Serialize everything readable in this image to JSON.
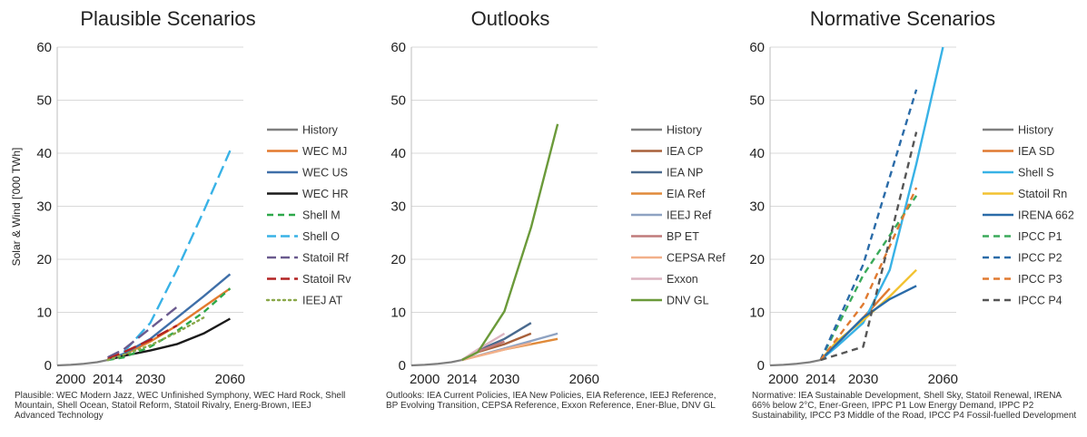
{
  "y_axis_label": "Solar & Wind ['000 TWh]",
  "chart_data": [
    {
      "type": "line",
      "title": "Plausible Scenarios",
      "ylabel": "Solar & Wind ['000 TWh]",
      "xticks": [
        2000,
        2014,
        2030,
        2060
      ],
      "yticks": [
        0,
        10,
        20,
        30,
        40,
        50,
        60
      ],
      "ylim": [
        0,
        60
      ],
      "xlim": [
        1995,
        2065
      ],
      "grid": true,
      "legend": "right",
      "series": [
        {
          "name": "History",
          "color": "#7f7f7f",
          "dash": "solid",
          "x": [
            1995,
            2000,
            2005,
            2010,
            2014
          ],
          "y": [
            0,
            0.1,
            0.3,
            0.6,
            1.0
          ]
        },
        {
          "name": "WEC MJ",
          "color": "#e37a2e",
          "dash": "solid",
          "x": [
            2014,
            2020,
            2030,
            2040,
            2050,
            2060
          ],
          "y": [
            1.0,
            2.0,
            4.5,
            7.5,
            11.0,
            14.5
          ]
        },
        {
          "name": "WEC US",
          "color": "#3f6fa8",
          "dash": "solid",
          "x": [
            2014,
            2020,
            2030,
            2040,
            2050,
            2060
          ],
          "y": [
            1.0,
            2.2,
            5.0,
            9.0,
            13.0,
            17.2
          ]
        },
        {
          "name": "WEC HR",
          "color": "#1a1a1a",
          "dash": "solid",
          "x": [
            2014,
            2020,
            2030,
            2040,
            2050,
            2060
          ],
          "y": [
            1.0,
            1.8,
            2.8,
            4.0,
            6.0,
            8.8
          ]
        },
        {
          "name": "Shell M",
          "color": "#2ea84a",
          "dash": "dash",
          "x": [
            2014,
            2020,
            2030,
            2040,
            2050,
            2060
          ],
          "y": [
            1.0,
            1.5,
            3.5,
            6.5,
            10.0,
            14.5
          ]
        },
        {
          "name": "Shell O",
          "color": "#38b2e6",
          "dash": "longdash",
          "x": [
            2014,
            2020,
            2030,
            2040,
            2050,
            2060
          ],
          "y": [
            1.0,
            2.5,
            8.0,
            18.0,
            29.0,
            40.5
          ]
        },
        {
          "name": "Statoil Rf",
          "color": "#6a5a8e",
          "dash": "longdash",
          "x": [
            2014,
            2020,
            2030,
            2040
          ],
          "y": [
            1.5,
            3.0,
            7.0,
            11.0
          ]
        },
        {
          "name": "Statoil Rv",
          "color": "#b22222",
          "dash": "longdash",
          "x": [
            2014,
            2020,
            2030,
            2040
          ],
          "y": [
            1.2,
            2.5,
            4.8,
            7.5
          ]
        },
        {
          "name": "IEEJ AT",
          "color": "#8aa84a",
          "dash": "dot",
          "x": [
            2014,
            2020,
            2030,
            2040,
            2050
          ],
          "y": [
            1.0,
            2.0,
            3.8,
            6.2,
            9.0
          ]
        }
      ]
    },
    {
      "type": "line",
      "title": "Outlooks",
      "xticks": [
        2000,
        2014,
        2030,
        2060
      ],
      "yticks": [
        0,
        10,
        20,
        30,
        40,
        50,
        60
      ],
      "ylim": [
        0,
        60
      ],
      "xlim": [
        1995,
        2065
      ],
      "grid": true,
      "legend": "right",
      "series": [
        {
          "name": "History",
          "color": "#7f7f7f",
          "dash": "solid",
          "x": [
            1995,
            2000,
            2005,
            2010,
            2014
          ],
          "y": [
            0,
            0.1,
            0.3,
            0.6,
            1.0
          ]
        },
        {
          "name": "IEA CP",
          "color": "#a8603a",
          "dash": "solid",
          "x": [
            2014,
            2020,
            2030,
            2040
          ],
          "y": [
            1.0,
            2.5,
            4.0,
            6.0
          ]
        },
        {
          "name": "IEA NP",
          "color": "#4a6a8e",
          "dash": "solid",
          "x": [
            2014,
            2020,
            2030,
            2040
          ],
          "y": [
            1.0,
            2.8,
            5.0,
            8.0
          ]
        },
        {
          "name": "EIA Ref",
          "color": "#e08a3a",
          "dash": "solid",
          "x": [
            2014,
            2030,
            2050
          ],
          "y": [
            1.0,
            3.0,
            5.0
          ]
        },
        {
          "name": "IEEJ Ref",
          "color": "#8ea2c2",
          "dash": "solid",
          "x": [
            2014,
            2030,
            2050
          ],
          "y": [
            1.0,
            3.2,
            6.0
          ]
        },
        {
          "name": "BP ET",
          "color": "#c07a7a",
          "dash": "solid",
          "x": [
            2014,
            2020,
            2030
          ],
          "y": [
            1.0,
            2.6,
            4.5
          ]
        },
        {
          "name": "CEPSA Ref",
          "color": "#f2b08a",
          "dash": "solid",
          "x": [
            2014,
            2030,
            2040
          ],
          "y": [
            1.0,
            3.0,
            4.2
          ]
        },
        {
          "name": "Exxon",
          "color": "#dcb4c0",
          "dash": "solid",
          "x": [
            2014,
            2020,
            2025,
            2030
          ],
          "y": [
            1.0,
            3.0,
            4.5,
            6.0
          ]
        },
        {
          "name": "DNV GL",
          "color": "#6b9a3a",
          "dash": "solid",
          "x": [
            2014,
            2020,
            2030,
            2040,
            2050
          ],
          "y": [
            1.0,
            2.5,
            10.2,
            26.0,
            45.5
          ]
        }
      ]
    },
    {
      "type": "line",
      "title": "Normative Scenarios",
      "xticks": [
        2000,
        2014,
        2030,
        2060
      ],
      "yticks": [
        0,
        10,
        20,
        30,
        40,
        50,
        60
      ],
      "ylim": [
        0,
        60
      ],
      "xlim": [
        1995,
        2065
      ],
      "grid": true,
      "legend": "right",
      "series": [
        {
          "name": "History",
          "color": "#7f7f7f",
          "dash": "solid",
          "x": [
            1995,
            2000,
            2005,
            2010,
            2014
          ],
          "y": [
            0,
            0.1,
            0.3,
            0.6,
            1.0
          ]
        },
        {
          "name": "IEA SD",
          "color": "#e07a30",
          "dash": "solid",
          "x": [
            2014,
            2020,
            2030,
            2040
          ],
          "y": [
            1.0,
            4.0,
            9.0,
            14.5
          ]
        },
        {
          "name": "Shell S",
          "color": "#38b2e6",
          "dash": "solid",
          "x": [
            2014,
            2020,
            2030,
            2040,
            2050,
            2060
          ],
          "y": [
            1.0,
            3.5,
            8.0,
            18.0,
            38.0,
            60.0
          ]
        },
        {
          "name": "Statoil Rn",
          "color": "#f2c230",
          "dash": "solid",
          "x": [
            2014,
            2020,
            2030,
            2040,
            2050
          ],
          "y": [
            1.0,
            4.5,
            8.5,
            13.0,
            18.0
          ]
        },
        {
          "name": "IRENA 662",
          "color": "#2a6ba8",
          "dash": "solid",
          "x": [
            2014,
            2020,
            2030,
            2040,
            2050
          ],
          "y": [
            1.0,
            4.0,
            9.0,
            12.5,
            15.0
          ]
        },
        {
          "name": "IPCC P1",
          "color": "#3aaa5a",
          "dash": "dash",
          "x": [
            2014,
            2030,
            2050
          ],
          "y": [
            1.0,
            17.0,
            32.0
          ]
        },
        {
          "name": "IPCC P2",
          "color": "#2a6ba8",
          "dash": "dash",
          "x": [
            2014,
            2030,
            2050
          ],
          "y": [
            1.0,
            19.0,
            52.0
          ]
        },
        {
          "name": "IPCC P3",
          "color": "#e07a30",
          "dash": "dash",
          "x": [
            2014,
            2030,
            2050
          ],
          "y": [
            1.0,
            11.5,
            33.5
          ]
        },
        {
          "name": "IPCC P4",
          "color": "#555555",
          "dash": "dash",
          "x": [
            2014,
            2030,
            2050
          ],
          "y": [
            1.0,
            3.5,
            44.0
          ]
        }
      ]
    }
  ],
  "captions": [
    "Plausible: WEC Modern Jazz, WEC Unfinished Symphony, WEC Hard Rock, Shell Mountain, Shell Ocean, Statoil Reform, Statoil Rivalry, Energ-Brown, IEEJ Advanced Technology",
    "Outlooks: IEA Current Policies, IEA New Policies, EIA Reference, IEEJ Reference, BP Evolving Transition, CEPSA Reference, Exxon Reference, Ener-Blue, DNV GL",
    "Normative: IEA Sustainable Development, Shell Sky, Statoil Renewal, IRENA 66% below 2°C, Ener-Green, IPPC P1 Low Energy Demand, IPPC P2 Sustainability, IPCC P3 Middle of the Road, IPCC P4 Fossil-fuelled Development"
  ]
}
